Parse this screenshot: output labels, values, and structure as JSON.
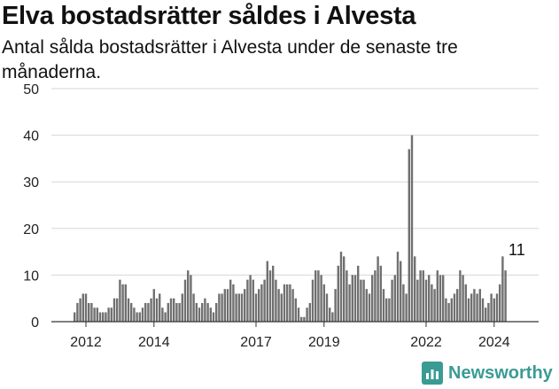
{
  "title": "Elva bostadsrätter såldes i Alvesta",
  "subtitle": "Antal sålda bostadsrätter i Alvesta under de senaste tre månaderna.",
  "logo_text": "Newsworthy",
  "colors": {
    "bar": "#707070",
    "highlight": "#3a9b94",
    "grid": "#d6d6d6",
    "axis": "#333333"
  },
  "chart_data": {
    "type": "bar",
    "title": "Elva bostadsrätter såldes i Alvesta",
    "subtitle": "Antal sålda bostadsrätter i Alvesta under de senaste tre månaderna.",
    "xlabel": "",
    "ylabel": "",
    "ylim": [
      0,
      50
    ],
    "yticks": [
      0,
      10,
      20,
      30,
      40,
      50
    ],
    "xticks": [
      {
        "label": "2012",
        "index": 4
      },
      {
        "label": "2014",
        "index": 28
      },
      {
        "label": "2017",
        "index": 64
      },
      {
        "label": "2019",
        "index": 88
      },
      {
        "label": "2022",
        "index": 124
      },
      {
        "label": "2024",
        "index": 148
      }
    ],
    "grid": true,
    "annotation": {
      "text": "11",
      "index": 156
    },
    "highlight_index": 156,
    "values": [
      2,
      4,
      5,
      6,
      6,
      4,
      4,
      3,
      3,
      2,
      2,
      2,
      3,
      3,
      5,
      5,
      9,
      8,
      8,
      5,
      4,
      3,
      2,
      2,
      3,
      4,
      4,
      5,
      7,
      5,
      6,
      3,
      2,
      4,
      5,
      5,
      4,
      4,
      6,
      9,
      11,
      10,
      6,
      4,
      3,
      4,
      5,
      4,
      3,
      2,
      4,
      6,
      6,
      7,
      7,
      9,
      8,
      6,
      6,
      6,
      7,
      9,
      10,
      9,
      6,
      7,
      8,
      9,
      13,
      11,
      12,
      9,
      7,
      6,
      8,
      8,
      8,
      7,
      5,
      3,
      1,
      1,
      3,
      4,
      9,
      11,
      11,
      10,
      8,
      6,
      3,
      2,
      7,
      12,
      15,
      14,
      11,
      8,
      10,
      10,
      12,
      9,
      9,
      7,
      6,
      10,
      11,
      14,
      12,
      7,
      5,
      5,
      9,
      10,
      15,
      13,
      8,
      6,
      37,
      40,
      14,
      9,
      11,
      11,
      9,
      10,
      8,
      7,
      11,
      10,
      10,
      5,
      4,
      5,
      6,
      7,
      11,
      10,
      8,
      5,
      6,
      7,
      6,
      7,
      5,
      3,
      4,
      6,
      5,
      6,
      8,
      14,
      11
    ]
  }
}
